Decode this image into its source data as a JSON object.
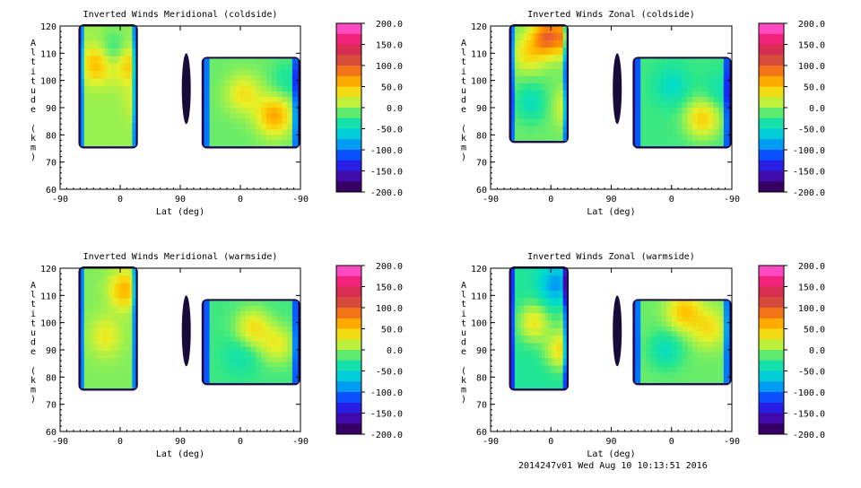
{
  "chart_data": [
    {
      "type": "heatmap",
      "title": "Inverted Winds Meridional (coldside)",
      "xlabel": "Lat (deg)",
      "ylabel": "Altitude (km)",
      "x_ticks": [
        "-90",
        "0",
        "90",
        "0",
        "-90"
      ],
      "y_ticks": [
        60,
        70,
        80,
        90,
        100,
        110,
        120
      ],
      "ylim": [
        60,
        120
      ],
      "colorbar": {
        "min": -200,
        "max": 200,
        "step": 25,
        "labels": [
          "200.0",
          "150.0",
          "100.0",
          "50.0",
          "0.0",
          "-50.0",
          "-100.0",
          "-150.0",
          "-200.0"
        ]
      },
      "panels": [
        {
          "lat_range": [
            -90,
            90
          ],
          "side": "left",
          "alt_range": [
            76,
            120
          ],
          "typical_value": 0,
          "extrema": [
            {
              "lat": -60,
              "alt": 106,
              "value": 60
            },
            {
              "lat": -5,
              "alt": 106,
              "value": 55
            },
            {
              "lat": 25,
              "alt": 92,
              "value": 40
            },
            {
              "lat": -30,
              "alt": 110,
              "value": -40
            }
          ]
        },
        {
          "lat_range": [
            90,
            -90
          ],
          "side": "right",
          "alt_range": [
            76,
            108
          ],
          "typical_value": -10,
          "extrema": [
            {
              "lat": -25,
              "alt": 87,
              "value": 65
            },
            {
              "lat": 25,
              "alt": 95,
              "value": 35
            },
            {
              "lat": -50,
              "alt": 100,
              "value": -35
            }
          ]
        }
      ]
    },
    {
      "type": "heatmap",
      "title": "Inverted Winds Zonal (coldside)",
      "xlabel": "Lat (deg)",
      "ylabel": "Altitude (km)",
      "x_ticks": [
        "-90",
        "0",
        "90",
        "0",
        "-90"
      ],
      "y_ticks": [
        60,
        70,
        80,
        90,
        100,
        110,
        120
      ],
      "ylim": [
        60,
        120
      ],
      "colorbar": {
        "min": -200,
        "max": 200,
        "step": 25,
        "labels": [
          "200.0",
          "150.0",
          "100.0",
          "50.0",
          "0.0",
          "-50.0",
          "-100.0",
          "-150.0",
          "-200.0"
        ]
      },
      "panels": [
        {
          "lat_range": [
            -90,
            90
          ],
          "side": "left",
          "alt_range": [
            78,
            120
          ],
          "typical_value": -10,
          "extrema": [
            {
              "lat": -25,
              "alt": 116,
              "value": 90
            },
            {
              "lat": 25,
              "alt": 116,
              "value": 100
            },
            {
              "lat": -60,
              "alt": 110,
              "value": 35
            },
            {
              "lat": 20,
              "alt": 90,
              "value": 40
            },
            {
              "lat": -55,
              "alt": 92,
              "value": -45
            }
          ]
        },
        {
          "lat_range": [
            90,
            -90
          ],
          "side": "right",
          "alt_range": [
            76,
            108
          ],
          "typical_value": -20,
          "extrema": [
            {
              "lat": -20,
              "alt": 86,
              "value": 45
            },
            {
              "lat": 30,
              "alt": 98,
              "value": -50
            },
            {
              "lat": -50,
              "alt": 96,
              "value": -40
            }
          ]
        }
      ]
    },
    {
      "type": "heatmap",
      "title": "Inverted Winds Meridional (warmside)",
      "xlabel": "Lat (deg)",
      "ylabel": "Altitude (km)",
      "x_ticks": [
        "-90",
        "0",
        "90",
        "0",
        "-90"
      ],
      "y_ticks": [
        60,
        70,
        80,
        90,
        100,
        110,
        120
      ],
      "ylim": [
        60,
        120
      ],
      "colorbar": {
        "min": -200,
        "max": 200,
        "step": 25,
        "labels": [
          "200.0",
          "150.0",
          "100.0",
          "50.0",
          "0.0",
          "-50.0",
          "-100.0",
          "-150.0",
          "-200.0"
        ]
      },
      "panels": [
        {
          "lat_range": [
            -90,
            90
          ],
          "side": "left",
          "alt_range": [
            76,
            120
          ],
          "typical_value": -5,
          "extrema": [
            {
              "lat": -10,
              "alt": 112,
              "value": 60
            },
            {
              "lat": 50,
              "alt": 96,
              "value": 50
            },
            {
              "lat": 40,
              "alt": 110,
              "value": -55
            },
            {
              "lat": -45,
              "alt": 95,
              "value": 30
            }
          ]
        },
        {
          "lat_range": [
            90,
            -90
          ],
          "side": "right",
          "alt_range": [
            78,
            108
          ],
          "typical_value": -20,
          "extrema": [
            {
              "lat": 10,
              "alt": 98,
              "value": 35
            },
            {
              "lat": -30,
              "alt": 92,
              "value": 25
            },
            {
              "lat": 30,
              "alt": 88,
              "value": -40
            }
          ]
        }
      ]
    },
    {
      "type": "heatmap",
      "title": "Inverted Winds Zonal (warmside)",
      "xlabel": "Lat (deg)",
      "ylabel": "Altitude (km)",
      "x_ticks": [
        "-90",
        "0",
        "90",
        "0",
        "-90"
      ],
      "y_ticks": [
        60,
        70,
        80,
        90,
        100,
        110,
        120
      ],
      "ylim": [
        60,
        120
      ],
      "colorbar": {
        "min": -200,
        "max": 200,
        "step": 25,
        "labels": [
          "200.0",
          "150.0",
          "100.0",
          "50.0",
          "0.0",
          "-50.0",
          "-100.0",
          "-150.0",
          "-200.0"
        ]
      },
      "panels": [
        {
          "lat_range": [
            -90,
            90
          ],
          "side": "left",
          "alt_range": [
            76,
            120
          ],
          "typical_value": -30,
          "extrema": [
            {
              "lat": 40,
              "alt": 102,
              "value": 80
            },
            {
              "lat": -50,
              "alt": 100,
              "value": 30
            },
            {
              "lat": 0,
              "alt": 90,
              "value": 35
            },
            {
              "lat": -10,
              "alt": 114,
              "value": -90
            }
          ]
        },
        {
          "lat_range": [
            90,
            -90
          ],
          "side": "right",
          "alt_range": [
            78,
            108
          ],
          "typical_value": -10,
          "extrema": [
            {
              "lat": 10,
              "alt": 104,
              "value": 50
            },
            {
              "lat": -30,
              "alt": 98,
              "value": 35
            },
            {
              "lat": 40,
              "alt": 90,
              "value": -45
            }
          ]
        }
      ]
    }
  ],
  "footer": "2014247v01 Wed Aug 10 10:13:51 2016"
}
